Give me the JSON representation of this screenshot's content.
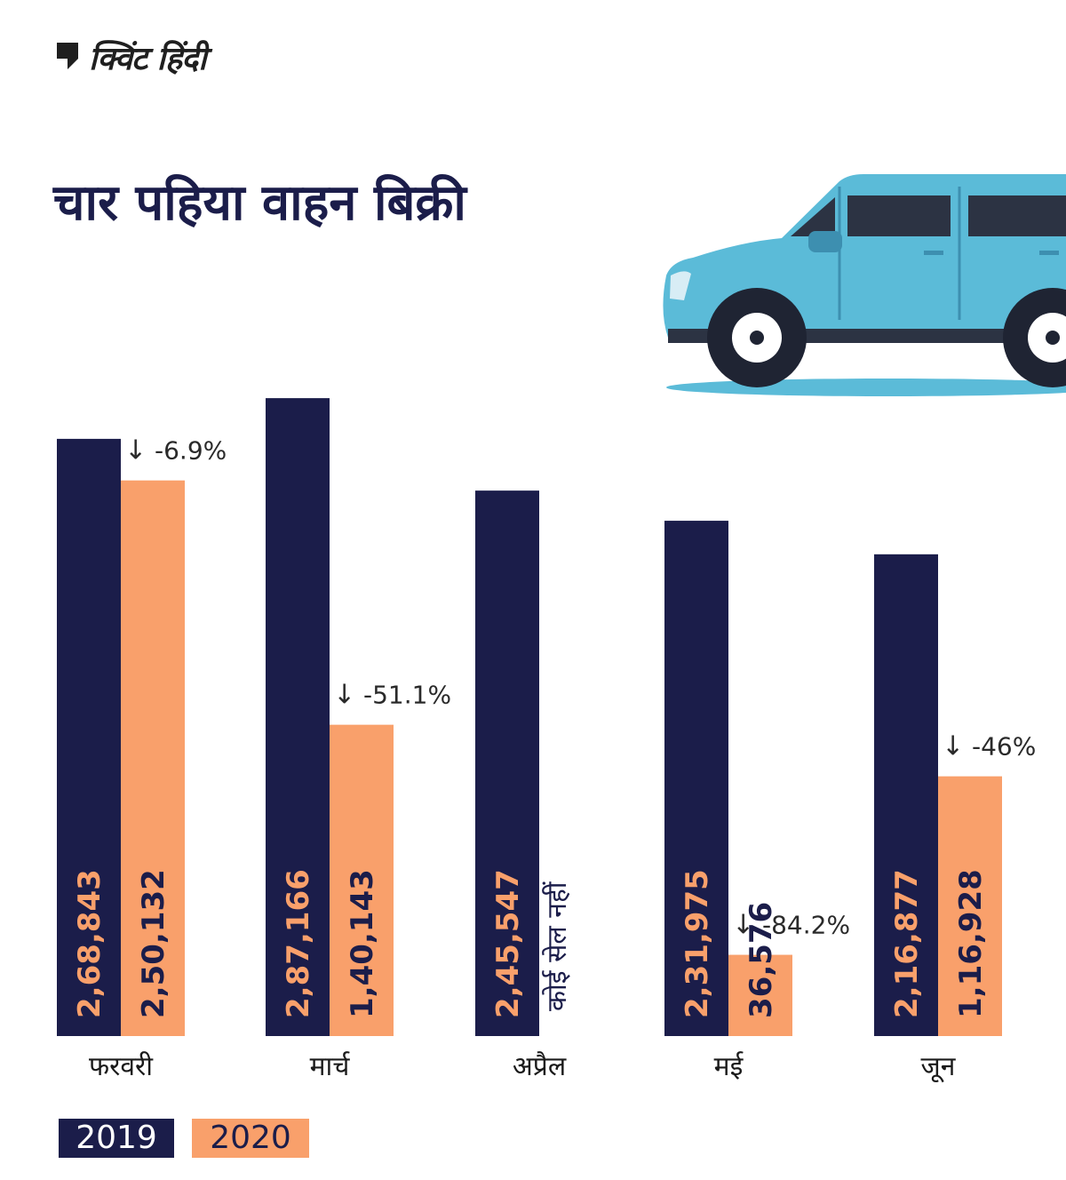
{
  "brand": {
    "name": "क्विंट हिंदी"
  },
  "title": "चार पहिया वाहन बिक्री",
  "colors": {
    "navy": "#1b1d4a",
    "orange": "#f9a06b",
    "car_body": "#5bbbd8"
  },
  "legend": {
    "series_2019": "2019",
    "series_2020": "2020"
  },
  "chart_data": {
    "type": "bar",
    "title": "चार पहिया वाहन बिक्री",
    "categories": [
      "फरवरी",
      "मार्च",
      "अप्रैल",
      "मई",
      "जून"
    ],
    "series": [
      {
        "name": "2019",
        "values": [
          268843,
          287166,
          245547,
          231975,
          216877
        ],
        "labels": [
          "2,68,843",
          "2,87,166",
          "2,45,547",
          "2,31,975",
          "2,16,877"
        ]
      },
      {
        "name": "2020",
        "values": [
          250132,
          140143,
          null,
          36576,
          116928
        ],
        "labels": [
          "2,50,132",
          "1,40,143",
          "कोई सेल नहीं",
          "36,576",
          "1,16,928"
        ]
      }
    ],
    "changes": [
      "-6.9%",
      "-51.1%",
      null,
      "-84.2%",
      "-46%"
    ],
    "grid": false,
    "legend_position": "bottom-left"
  }
}
